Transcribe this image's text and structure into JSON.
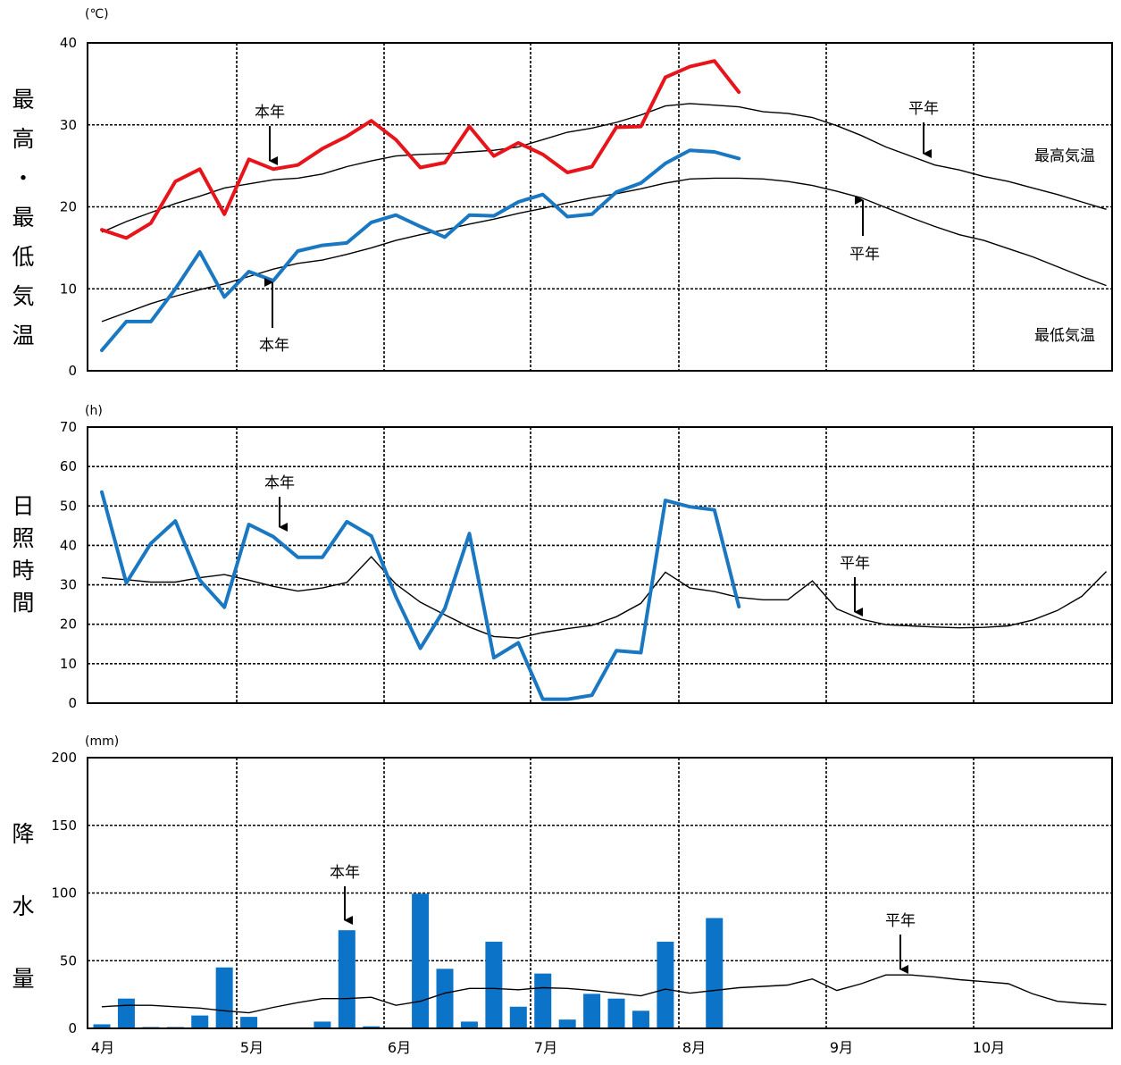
{
  "x_axis": {
    "months": [
      "4月",
      "5月",
      "6月",
      "7月",
      "8月",
      "9月",
      "10月"
    ],
    "periods": 42,
    "period_unit": "半旬"
  },
  "colors": {
    "max_temp": "#e8141b",
    "min_temp": "#1a78c2",
    "sunshine": "#1a78c2",
    "precip": "#0b74c9",
    "normal": "#000000",
    "grid": "#000000"
  },
  "chart_data": [
    {
      "type": "line",
      "ylabel": "最高・最低気温",
      "unit": "(℃)",
      "ylim": [
        0,
        40
      ],
      "yticks": [
        0,
        10,
        20,
        30,
        40
      ],
      "grid": true,
      "labels": {
        "this_year": "本年",
        "normal": "平年",
        "max_label": "最高気温",
        "min_label": "最低気温"
      },
      "series": [
        {
          "name": "最高気温",
          "role": "this_year",
          "values": [
            17.2,
            16.2,
            18,
            23.1,
            24.6,
            19.1,
            25.8,
            24.6,
            25.1,
            27.1,
            28.6,
            30.5,
            28.2,
            24.8,
            25.4,
            29.8,
            26.2,
            27.8,
            26.4,
            24.2,
            24.9,
            29.7,
            29.8,
            35.8,
            37.1,
            37.8,
            34
          ]
        },
        {
          "name": "最高気温",
          "role": "normal",
          "values": [
            16.9,
            18.2,
            19.3,
            20.4,
            21.3,
            22.3,
            22.8,
            23.3,
            23.5,
            24,
            24.9,
            25.6,
            26.2,
            26.4,
            26.5,
            26.7,
            26.9,
            27.3,
            28.2,
            29.1,
            29.6,
            30.3,
            31.2,
            32.3,
            32.6,
            32.4,
            32.2,
            31.6,
            31.4,
            30.9,
            29.9,
            28.7,
            27.3,
            26.2,
            25.1,
            24.5,
            23.7,
            23.1,
            22.3,
            21.5,
            20.6,
            19.7
          ]
        },
        {
          "name": "最低気温",
          "role": "this_year",
          "values": [
            2.5,
            6,
            6,
            10,
            14.5,
            9,
            12.1,
            11,
            14.6,
            15.3,
            15.6,
            18.1,
            19,
            17.6,
            16.3,
            19,
            18.9,
            20.6,
            21.5,
            18.8,
            19.1,
            21.8,
            22.9,
            25.3,
            26.9,
            26.7,
            25.9
          ]
        },
        {
          "name": "最低気温",
          "role": "normal",
          "values": [
            6,
            7.1,
            8.2,
            9.1,
            9.9,
            10.6,
            11.5,
            12.4,
            13.1,
            13.5,
            14.2,
            15,
            15.9,
            16.6,
            17.2,
            17.9,
            18.5,
            19.2,
            19.8,
            20.5,
            21.1,
            21.6,
            22.2,
            22.9,
            23.4,
            23.5,
            23.5,
            23.4,
            23.1,
            22.6,
            21.9,
            21.1,
            19.9,
            18.7,
            17.6,
            16.6,
            15.9,
            14.9,
            13.9,
            12.7,
            11.5,
            10.4
          ]
        }
      ],
      "annotations": [
        {
          "text": "本年",
          "target": "最高気温 本年",
          "index": 6.5
        },
        {
          "text": "本年",
          "target": "最低気温 本年",
          "index": 6.8
        },
        {
          "text": "平年",
          "target": "最高気温 平年",
          "index": 33
        },
        {
          "text": "平年",
          "target": "最低気温 平年",
          "index": 30.8
        }
      ]
    },
    {
      "type": "line",
      "ylabel": "日照時間",
      "unit": "(h)",
      "ylim": [
        0,
        70
      ],
      "yticks": [
        0,
        10,
        20,
        30,
        40,
        50,
        60,
        70
      ],
      "grid": true,
      "labels": {
        "this_year": "本年",
        "normal": "平年"
      },
      "series": [
        {
          "name": "日照時間",
          "role": "this_year",
          "values": [
            53.5,
            30.5,
            40.5,
            46.2,
            31.2,
            24.3,
            45.3,
            42.2,
            37,
            37,
            46,
            42.4,
            27,
            13.9,
            24,
            43,
            11.5,
            15.3,
            1,
            1,
            2,
            13.3,
            12.8,
            51.4,
            49.8,
            49,
            24.5
          ]
        },
        {
          "name": "日照時間",
          "role": "normal",
          "values": [
            31.8,
            31.3,
            30.7,
            30.7,
            31.8,
            32.6,
            31.2,
            29.6,
            28.4,
            29.2,
            30.6,
            37.1,
            30.2,
            25.6,
            22.4,
            19.3,
            16.9,
            16.5,
            17.9,
            18.9,
            19.7,
            21.9,
            25.3,
            33.2,
            29.2,
            28.3,
            26.8,
            26.2,
            26.2,
            31,
            23.9,
            21.3,
            19.9,
            19.6,
            19.3,
            19.1,
            19.2,
            19.6,
            21.1,
            23.5,
            27.1,
            33.4
          ]
        }
      ],
      "annotations": [
        {
          "text": "本年",
          "target": "日照時間 本年",
          "index": 7.3
        },
        {
          "text": "平年",
          "target": "日照時間 平年",
          "index": 30.8
        }
      ]
    },
    {
      "type": "bar",
      "ylabel": "降水量",
      "unit": "(mm)",
      "ylim": [
        0,
        200
      ],
      "yticks": [
        0,
        50,
        100,
        150,
        200
      ],
      "grid": true,
      "labels": {
        "this_year": "本年",
        "normal": "平年"
      },
      "series": [
        {
          "name": "降水量",
          "role": "this_year",
          "kind": "bar",
          "values": [
            3,
            22,
            1,
            1,
            9.5,
            45,
            8.5,
            0,
            0,
            5,
            72.5,
            1.5,
            0,
            99.5,
            44,
            5,
            64,
            16,
            40.5,
            6.5,
            25.5,
            22,
            13,
            64,
            0,
            81.5
          ]
        },
        {
          "name": "降水量",
          "role": "normal",
          "kind": "line",
          "values": [
            16,
            17,
            17,
            16,
            15,
            13,
            11.5,
            15.5,
            19,
            22,
            22,
            23,
            17,
            20,
            26,
            29.5,
            29.5,
            28.5,
            30,
            29.5,
            28,
            26,
            24,
            29,
            26,
            28,
            30,
            31,
            32,
            36.5,
            28,
            33,
            39.5,
            39.5,
            38,
            36,
            34.5,
            33,
            25.5,
            20,
            18.5,
            17.5
          ]
        }
      ],
      "annotations": [
        {
          "text": "本年",
          "target": "降水量 本年",
          "index": 10.5
        },
        {
          "text": "平年",
          "target": "降水量 平年",
          "index": 33
        }
      ]
    }
  ]
}
